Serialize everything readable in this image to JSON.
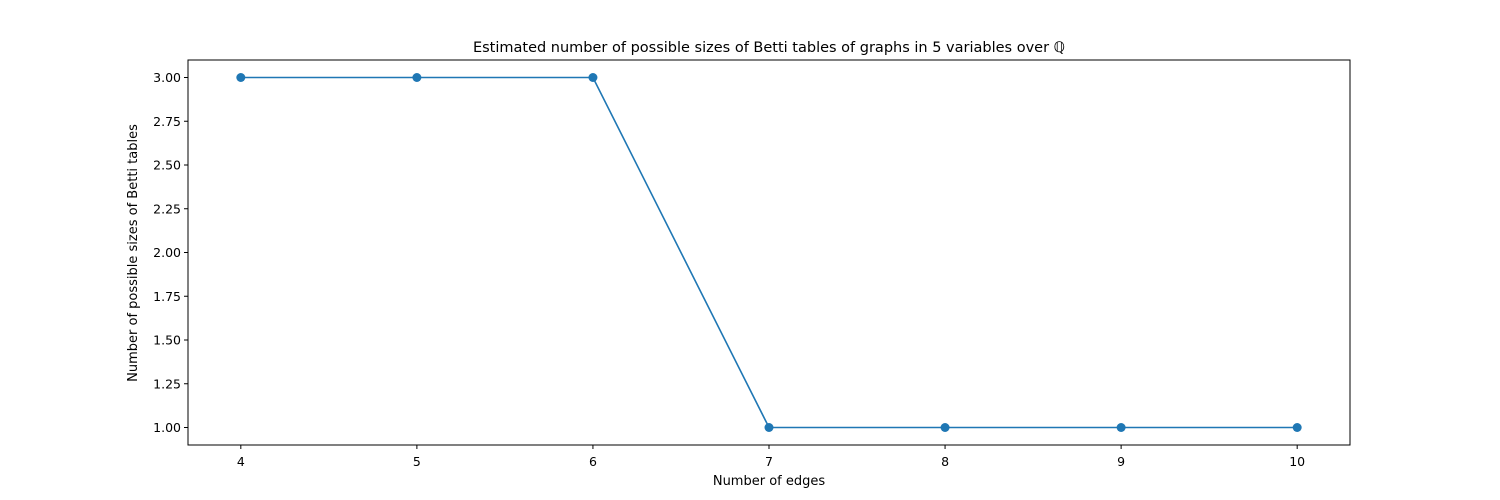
{
  "chart_data": {
    "type": "line",
    "title": "Estimated number of possible sizes of Betti tables of graphs in 5 variables over ℚ",
    "xlabel": "Number of edges",
    "ylabel": "Number of possible sizes of Betti tables",
    "x": [
      4,
      5,
      6,
      7,
      8,
      9,
      10
    ],
    "series": [
      {
        "values": [
          3,
          3,
          3,
          1,
          1,
          1,
          1
        ],
        "color": "#1f77b4",
        "marker": "circle"
      }
    ],
    "xlim": [
      3.7,
      10.3
    ],
    "ylim": [
      0.9,
      3.1
    ],
    "xticks": [
      4,
      5,
      6,
      7,
      8,
      9,
      10
    ],
    "xtick_labels": [
      "4",
      "5",
      "6",
      "7",
      "8",
      "9",
      "10"
    ],
    "yticks": [
      1.0,
      1.25,
      1.5,
      1.75,
      2.0,
      2.25,
      2.5,
      2.75,
      3.0
    ],
    "ytick_labels": [
      "1.00",
      "1.25",
      "1.50",
      "1.75",
      "2.00",
      "2.25",
      "2.50",
      "2.75",
      "3.00"
    ],
    "grid": false,
    "legend": "none"
  }
}
